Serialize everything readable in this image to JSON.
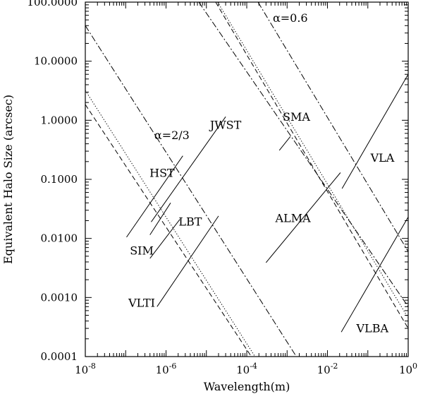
{
  "chart_data": {
    "type": "line",
    "xscale": "log",
    "yscale": "log",
    "xlim": [
      1e-08,
      1
    ],
    "ylim": [
      0.0001,
      100
    ],
    "xlabel": "Wavelength(m)",
    "ylabel": "Equivalent Halo Size (arcsec)",
    "grid": false,
    "x_ticks": [
      {
        "value": 1e-08,
        "base": "10",
        "exp": "-8"
      },
      {
        "value": 1e-06,
        "base": "10",
        "exp": "-6"
      },
      {
        "value": 0.0001,
        "base": "10",
        "exp": "-4"
      },
      {
        "value": 0.01,
        "base": "10",
        "exp": "-2"
      },
      {
        "value": 1,
        "base": "10",
        "exp": "0"
      }
    ],
    "y_ticks": [
      {
        "value": 0.0001,
        "label": "0.0001"
      },
      {
        "value": 0.001,
        "label": "0.0010"
      },
      {
        "value": 0.01,
        "label": "0.0100"
      },
      {
        "value": 0.1,
        "label": "0.1000"
      },
      {
        "value": 1,
        "label": "1.0000"
      },
      {
        "value": 10,
        "label": "10.0000"
      },
      {
        "value": 100,
        "label": "100.0000"
      }
    ],
    "series": [
      {
        "style": "solid",
        "points": [
          [
            1.05e-07,
            0.0105
          ],
          [
            2.6e-06,
            0.25
          ]
        ]
      },
      {
        "style": "solid",
        "points": [
          [
            4e-07,
            0.0115
          ],
          [
            1.3e-06,
            0.04
          ]
        ]
      },
      {
        "style": "solid",
        "points": [
          [
            4.3e-07,
            0.019
          ],
          [
            3e-05,
            1.15
          ]
        ]
      },
      {
        "style": "solid",
        "points": [
          [
            4e-07,
            0.0046
          ],
          [
            2.2e-06,
            0.021
          ]
        ]
      },
      {
        "style": "solid",
        "points": [
          [
            6e-07,
            0.0007
          ],
          [
            2e-05,
            0.024
          ]
        ]
      },
      {
        "style": "solid",
        "points": [
          [
            0.00064,
            0.31
          ],
          [
            0.0012,
            0.53
          ]
        ]
      },
      {
        "style": "solid",
        "points": [
          [
            0.0003,
            0.0039
          ],
          [
            0.021,
            0.13
          ]
        ]
      },
      {
        "style": "solid",
        "points": [
          [
            0.023,
            0.07
          ],
          [
            1.0,
            6.0
          ]
        ]
      },
      {
        "style": "solid",
        "points": [
          [
            0.022,
            0.00026
          ],
          [
            1.0,
            0.023
          ]
        ]
      },
      {
        "style": "dashdot",
        "points": [
          [
            1e-08,
            40
          ],
          [
            0.0017,
            0.0001
          ]
        ]
      },
      {
        "style": "dashdot",
        "points": [
          [
            6.5e-06,
            100
          ],
          [
            1.0,
            0.0007
          ]
        ]
      },
      {
        "style": "dashdot",
        "points": [
          [
            0.00019,
            100
          ],
          [
            1.0,
            0.006
          ]
        ]
      },
      {
        "style": "dotted",
        "points": [
          [
            1e-08,
            3.2
          ],
          [
            0.00016,
            0.0001
          ]
        ]
      },
      {
        "style": "dotted",
        "points": [
          [
            1.9e-05,
            100
          ],
          [
            1.0,
            0.00045
          ]
        ]
      },
      {
        "style": "dashed",
        "points": [
          [
            1e-08,
            1.85
          ],
          [
            0.00013,
            0.0001
          ]
        ]
      },
      {
        "style": "dashed",
        "points": [
          [
            1.7e-05,
            100
          ],
          [
            1.0,
            0.0003
          ]
        ]
      }
    ],
    "annotations": [
      {
        "text": "α=0.6",
        "x": 0.0012,
        "y": 46
      },
      {
        "text": "α=2/3",
        "x": 1.4e-06,
        "y": 0.48
      },
      {
        "text": "HST",
        "x": 8e-07,
        "y": 0.11
      },
      {
        "text": "JWST",
        "x": 3e-05,
        "y": 0.72
      },
      {
        "text": "SMA",
        "x": 0.0017,
        "y": 0.98
      },
      {
        "text": "VLA",
        "x": 0.23,
        "y": 0.2
      },
      {
        "text": "ALMA",
        "x": 0.0014,
        "y": 0.019
      },
      {
        "text": "LBT",
        "x": 4e-06,
        "y": 0.0165
      },
      {
        "text": "SIM",
        "x": 2.5e-07,
        "y": 0.0053
      },
      {
        "text": "VLTI",
        "x": 2.5e-07,
        "y": 0.0007
      },
      {
        "text": "VLBA",
        "x": 0.13,
        "y": 0.00026
      }
    ]
  }
}
